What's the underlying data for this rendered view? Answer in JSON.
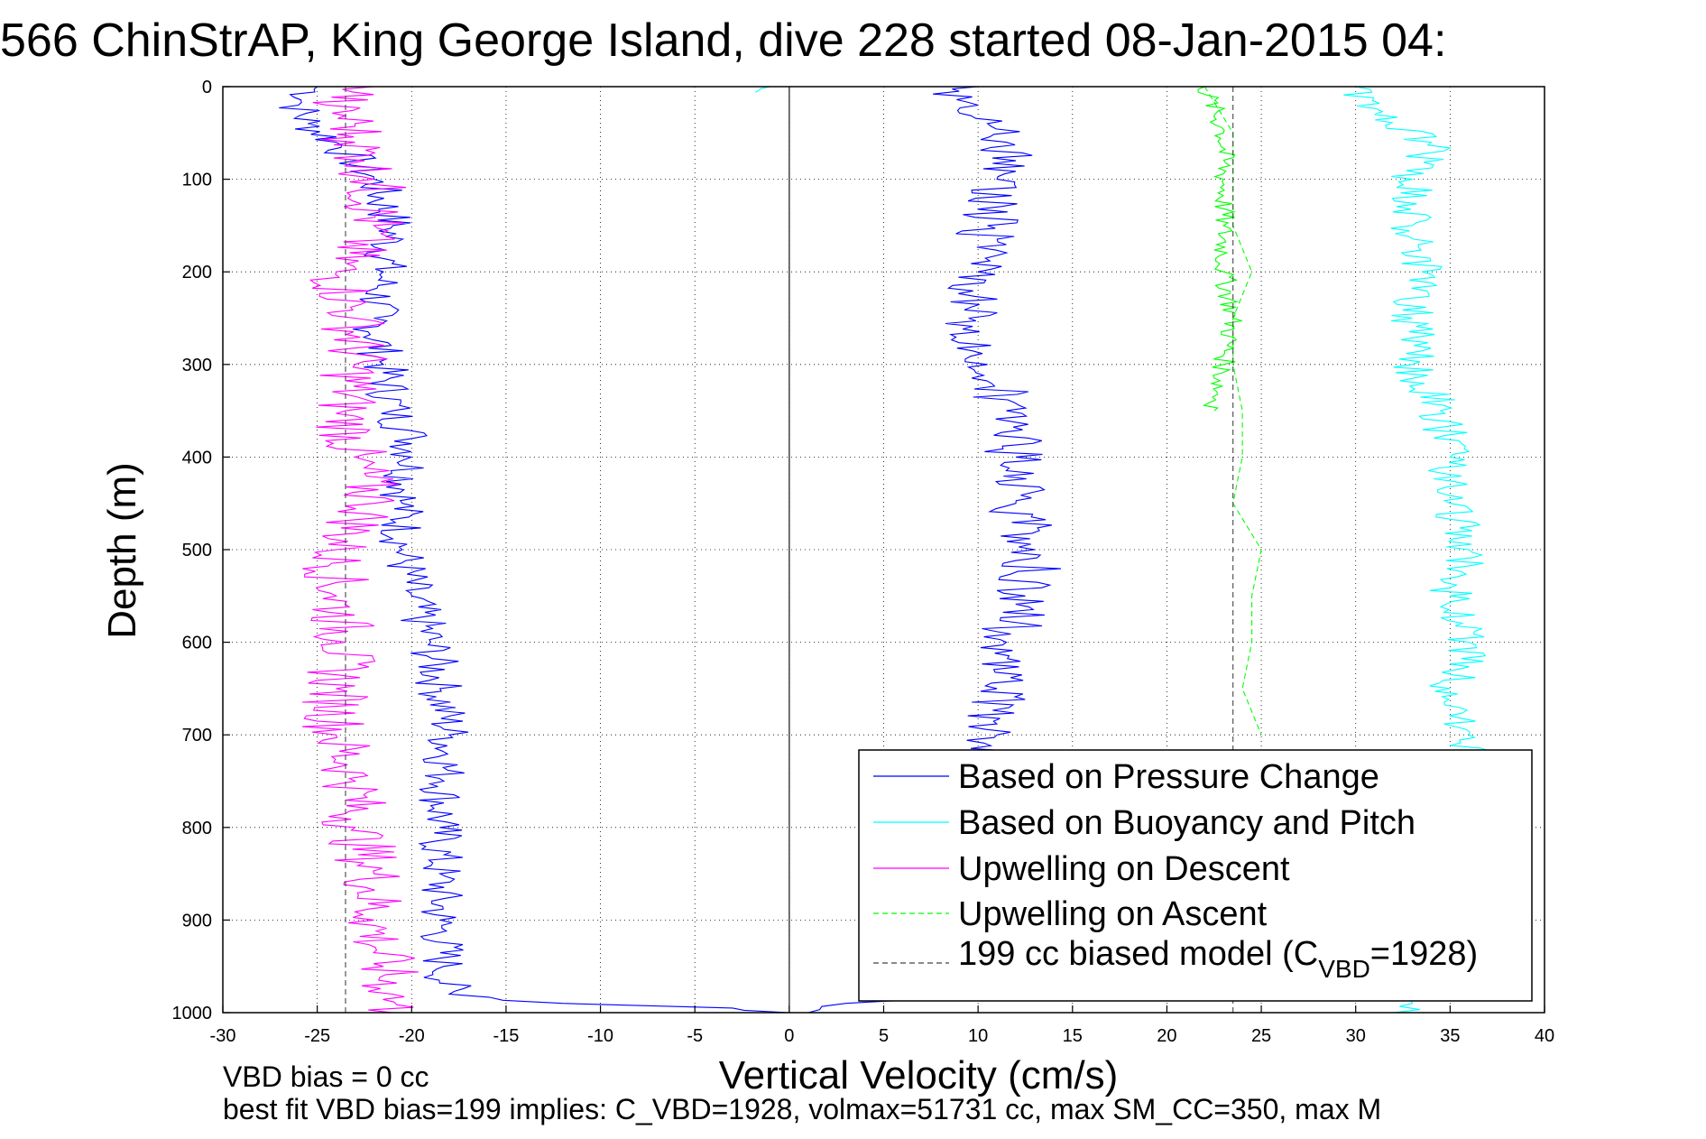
{
  "chart_data": {
    "type": "line",
    "title": "566 ChinStrAP, King George Island, dive 228 started 08-Jan-2015 04:",
    "xlabel": "Vertical Velocity (cm/s)",
    "ylabel": "Depth (m)",
    "xlim": [
      -30,
      40
    ],
    "ylim": [
      0,
      1000
    ],
    "y_reversed": true,
    "grid": true,
    "x_ticks": [
      -30,
      -25,
      -20,
      -15,
      -10,
      -5,
      0,
      5,
      10,
      15,
      20,
      25,
      30,
      35,
      40
    ],
    "y_ticks": [
      0,
      100,
      200,
      300,
      400,
      500,
      600,
      700,
      800,
      900,
      1000
    ],
    "legend_position": "bottom-right",
    "legend": {
      "pressure": "Based on Pressure Change",
      "buoyancy": "Based on Buoyancy and Pitch",
      "up_descent": "Upwelling on Descent",
      "up_ascent": "Upwelling on Ascent",
      "model_prefix": "199 cc biased model (C",
      "model_sub": "VBD",
      "model_suffix": "=1928)"
    },
    "series": [
      {
        "key": "pressure_descent",
        "name": "Based on Pressure Change",
        "color": "#0000ff",
        "style": "solid",
        "depth": [
          0,
          20,
          40,
          60,
          80,
          100,
          150,
          200,
          250,
          300,
          350,
          380,
          400,
          450,
          500,
          550,
          600,
          650,
          700,
          750,
          800,
          850,
          900,
          950,
          980,
          990,
          995,
          1000
        ],
        "values": [
          -25,
          -26,
          -25.5,
          -24,
          -23,
          -22,
          -21,
          -21.5,
          -22,
          -21.5,
          -21,
          -20,
          -20,
          -20.5,
          -20.5,
          -20,
          -19,
          -18.5,
          -18,
          -18.3,
          -18.5,
          -18.5,
          -18.5,
          -18.3,
          -18,
          -12,
          -3,
          0
        ]
      },
      {
        "key": "pressure_ascent",
        "name": "",
        "color": "#0000ff",
        "style": "solid",
        "depth": [
          1000,
          990,
          985,
          950,
          900,
          850,
          800,
          750,
          700,
          650,
          600,
          550,
          500,
          450,
          400,
          350,
          300,
          250,
          200,
          150,
          100,
          80,
          60,
          40,
          20,
          5,
          0
        ],
        "values": [
          1,
          3,
          9,
          11,
          11,
          11.5,
          11.5,
          11,
          11,
          11,
          11.5,
          12.5,
          13,
          12,
          12,
          11.5,
          10.5,
          9.5,
          10,
          10.5,
          11,
          12,
          11.5,
          10.5,
          10,
          9,
          10
        ]
      },
      {
        "key": "buoyancy_descent",
        "name": "Based on Buoyancy and Pitch",
        "color": "#00ffff",
        "style": "solid",
        "depth": [
          0,
          2,
          4,
          6
        ],
        "values": [
          -1,
          -1.5,
          -1.6,
          -1.8
        ]
      },
      {
        "key": "buoyancy_ascent",
        "name": "",
        "color": "#00ffff",
        "style": "solid",
        "depth": [
          1000,
          990,
          950,
          900,
          850,
          800,
          750,
          720,
          700,
          650,
          600,
          550,
          500,
          450,
          400,
          350,
          300,
          250,
          200,
          150,
          100,
          60,
          30,
          0
        ],
        "values": [
          32,
          33,
          35,
          35,
          35.5,
          35.5,
          35.5,
          36,
          36,
          35,
          36,
          35,
          36,
          35,
          35,
          34.5,
          33,
          33,
          33.5,
          33,
          33,
          34,
          31,
          30
        ]
      },
      {
        "key": "upwell_descent",
        "name": "Upwelling on Descent",
        "color": "#ff00ff",
        "style": "solid",
        "depth": [
          0,
          20,
          40,
          60,
          80,
          100,
          150,
          200,
          250,
          300,
          350,
          400,
          450,
          500,
          550,
          600,
          650,
          700,
          750,
          800,
          850,
          900,
          950,
          980,
          1000
        ],
        "values": [
          -22,
          -24.5,
          -23,
          -23,
          -22.5,
          -22,
          -22,
          -24,
          -23,
          -23,
          -23.5,
          -23,
          -22,
          -24,
          -24,
          -23.5,
          -24,
          -24,
          -23,
          -23,
          -22,
          -22,
          -21.5,
          -21,
          -21
        ]
      },
      {
        "key": "upwell_ascent",
        "name": "Upwelling on Ascent",
        "color": "#00ff00",
        "style": "dash",
        "depth": [
          0,
          50,
          100,
          150,
          200,
          250,
          300,
          350,
          400,
          450,
          500,
          550,
          600,
          650,
          700
        ],
        "values": [
          22,
          23.5,
          23.5,
          23.5,
          24.5,
          23.5,
          23.5,
          24,
          24,
          23.5,
          25,
          24.5,
          24.5,
          24,
          25
        ]
      },
      {
        "key": "upwell_ascent_raw",
        "name": "",
        "color": "#00ff00",
        "style": "solid",
        "depth": [
          0,
          50,
          100,
          150,
          200,
          250,
          300,
          350
        ],
        "values": [
          22,
          23,
          23,
          23,
          23,
          23.5,
          23,
          22.5
        ]
      },
      {
        "key": "model",
        "name": "199 cc biased model (CVBD=1928)",
        "color": "#444444",
        "style": "dash",
        "depth": [
          0,
          1000
        ],
        "values": [
          23.5,
          23.5
        ]
      },
      {
        "key": "model_neg",
        "name": "",
        "color": "#444444",
        "style": "dash",
        "depth": [
          0,
          1000
        ],
        "values": [
          -23.5,
          -23.5
        ]
      },
      {
        "key": "zero",
        "name": "",
        "color": "#000000",
        "style": "solid",
        "depth": [
          0,
          1000
        ],
        "values": [
          0,
          0
        ]
      }
    ],
    "notes": [
      "VBD bias = 0 cc",
      "best fit VBD bias=199 implies: C_VBD=1928, volmax=51731 cc, max SM_CC=350, max M"
    ]
  }
}
